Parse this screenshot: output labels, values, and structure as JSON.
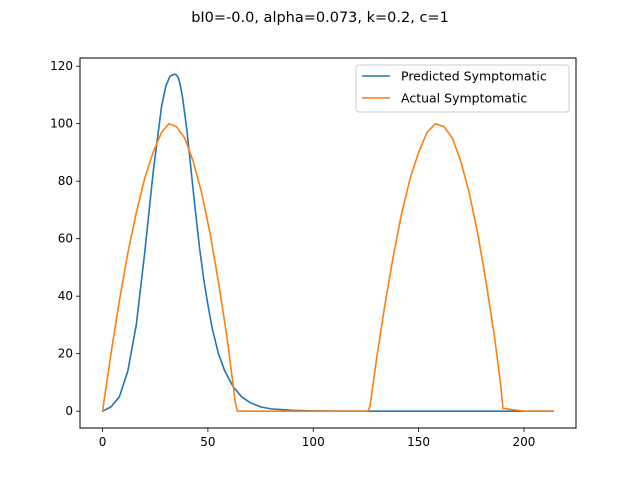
{
  "chart_data": {
    "type": "line",
    "title": "bI0=-0.0, alpha=0.073, k=0.2, c=1",
    "xlabel": "",
    "ylabel": "",
    "xlim": [
      -10.7,
      224.7
    ],
    "ylim": [
      -5.85,
      122.85
    ],
    "xticks": [
      0,
      50,
      100,
      150,
      200
    ],
    "yticks": [
      0,
      20,
      40,
      60,
      80,
      100,
      120
    ],
    "grid": false,
    "legend_position": "top-right",
    "series": [
      {
        "name": "Predicted Symptomatic",
        "color": "#1f77b4",
        "x": [
          0,
          4,
          8,
          12,
          16,
          20,
          24,
          28,
          30,
          32,
          34,
          35,
          36,
          37,
          38,
          40,
          42,
          44,
          46,
          48,
          50,
          52,
          55,
          58,
          62,
          66,
          70,
          75,
          80,
          90,
          100,
          120,
          150,
          180,
          214
        ],
        "y": [
          0,
          1.5,
          5,
          14,
          30,
          55,
          83,
          106,
          113,
          116.5,
          117.2,
          117,
          116,
          113,
          109,
          98,
          84,
          70,
          57,
          46,
          37,
          29,
          20,
          14,
          8.5,
          5,
          3,
          1.5,
          0.8,
          0.3,
          0.1,
          0,
          0,
          0,
          0
        ]
      },
      {
        "name": "Actual Symptomatic",
        "color": "#ff7f0e",
        "x": [
          0,
          4,
          8,
          12,
          16,
          20,
          24,
          28,
          31.5,
          35,
          39,
          43,
          47,
          51,
          55,
          59,
          62,
          63,
          64,
          80,
          100,
          126,
          127,
          130,
          134,
          138,
          142,
          146,
          150,
          154,
          158,
          162,
          166,
          170,
          174,
          178,
          182,
          186,
          189,
          190,
          200,
          214
        ],
        "y": [
          0,
          20,
          38.5,
          55,
          69,
          81,
          90,
          97,
          100,
          99,
          95,
          87,
          76,
          62,
          45,
          26,
          9,
          3,
          0,
          0,
          0,
          0,
          2,
          18,
          37,
          54,
          69,
          81,
          90,
          97,
          100,
          99,
          95,
          87,
          76,
          62,
          45,
          26,
          9,
          1,
          0,
          0
        ]
      }
    ]
  }
}
